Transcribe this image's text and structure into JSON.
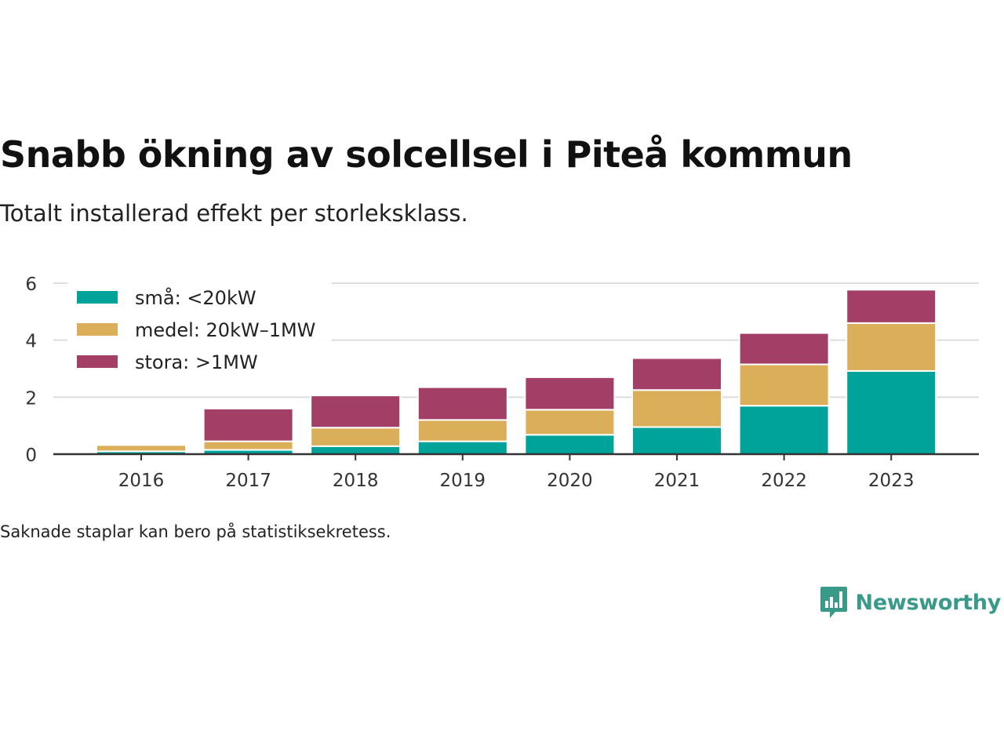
{
  "title": "Snabb ökning av solcellsel i Piteå kommun",
  "subtitle": "Totalt installerad effekt per storleksklass.",
  "note": "Saknade staplar kan bero på statistiksekretess.",
  "brand": {
    "name": "Newsworthy",
    "icon": "newsworthy-logo-icon",
    "color": "#3a9a8a"
  },
  "chart_data": {
    "type": "bar",
    "stacked": true,
    "categories": [
      "2016",
      "2017",
      "2018",
      "2019",
      "2020",
      "2021",
      "2022",
      "2023"
    ],
    "series": [
      {
        "name": "små: <20kW",
        "color": "#00a39a",
        "values": [
          0.1,
          0.15,
          0.28,
          0.45,
          0.68,
          0.95,
          1.7,
          2.92
        ]
      },
      {
        "name": "medel: 20kW–1MW",
        "color": "#dbae5a",
        "values": [
          0.22,
          0.3,
          0.65,
          0.75,
          0.88,
          1.3,
          1.45,
          1.68
        ]
      },
      {
        "name": "stora: >1MW",
        "color": "#a33f66",
        "values": [
          0,
          1.15,
          1.13,
          1.15,
          1.14,
          1.12,
          1.1,
          1.17
        ]
      }
    ],
    "ylim": [
      0,
      6
    ],
    "yticks": [
      0,
      2,
      4,
      6
    ],
    "grid": true,
    "legend": "top-left",
    "xlabel": "",
    "ylabel": ""
  }
}
